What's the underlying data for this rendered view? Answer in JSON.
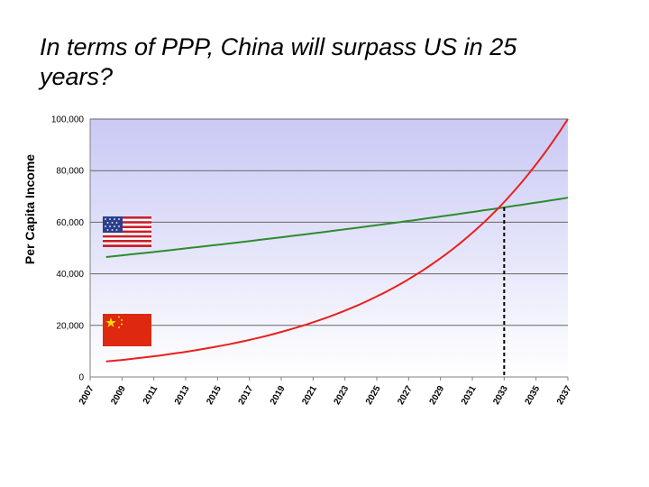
{
  "slide": {
    "title": "In terms of PPP, China will surpass US in 25 years?"
  },
  "chart_data": {
    "type": "line",
    "title": "In terms of PPP, China will surpass US in 25 years?",
    "ylabel": "Per Capita Income",
    "xlabel": "",
    "ylim": [
      0,
      100000
    ],
    "xlim": [
      2007,
      2037
    ],
    "y_ticks": [
      0,
      20000,
      40000,
      60000,
      80000,
      100000
    ],
    "y_tick_labels": [
      "0",
      "20,000",
      "40,000",
      "60,000",
      "80,000",
      "100,000"
    ],
    "x_ticks": [
      2007,
      2009,
      2011,
      2013,
      2015,
      2017,
      2019,
      2021,
      2023,
      2025,
      2027,
      2029,
      2031,
      2033,
      2035,
      2037
    ],
    "x_tick_labels": [
      "2007",
      "2009",
      "2011",
      "2013",
      "2015",
      "2017",
      "2019",
      "2021",
      "2023",
      "2025",
      "2027",
      "2029",
      "2031",
      "2033",
      "2035",
      "2037"
    ],
    "grid": "horizontal",
    "legend": "flag icons left of lines (US flag near green line, China flag near red line)",
    "series": [
      {
        "color": "#2e8b2e",
        "model": "exponential",
        "start_x": 2008,
        "start_y": 46500,
        "end_x": 2037,
        "end_y": 69500
      },
      {
        "color": "#e8201c",
        "model": "exponential",
        "start_x": 2008,
        "start_y": 6000,
        "end_x": 2037,
        "end_y": 100000
      }
    ],
    "crossover_marker": {
      "x": 2033,
      "style": "dashed-vertical",
      "color": "#000000"
    },
    "flags": [
      {
        "icon": "us-flag-icon",
        "near_series": 0
      },
      {
        "icon": "china-flag-icon",
        "near_series": 1
      }
    ],
    "colors": {
      "plot_top": "#c9c9f5",
      "plot_bottom": "#ffffff",
      "grid": "#666666",
      "us_line": "#2e8b2e",
      "china_line": "#e8201c"
    }
  }
}
